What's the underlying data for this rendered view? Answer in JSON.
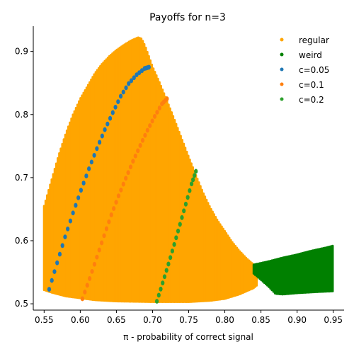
{
  "chart_data": {
    "type": "scatter",
    "title": "Payoffs for n=3",
    "xlabel": "π - probability of correct signal",
    "ylabel": "",
    "xlim": [
      0.535,
      0.965
    ],
    "ylim": [
      0.49,
      0.94
    ],
    "xticks": [
      "0.55",
      "0.60",
      "0.65",
      "0.70",
      "0.75",
      "0.80",
      "0.85",
      "0.90",
      "0.95"
    ],
    "yticks": [
      "0.5",
      "0.6",
      "0.7",
      "0.8",
      "0.9"
    ],
    "grid": false,
    "legend_position": "top-right",
    "series": [
      {
        "name": "regular",
        "color": "#ffa500",
        "region": {
          "upper": [
            [
              0.55,
              0.655
            ],
            [
              0.56,
              0.695
            ],
            [
              0.57,
              0.735
            ],
            [
              0.58,
              0.77
            ],
            [
              0.59,
              0.8
            ],
            [
              0.6,
              0.825
            ],
            [
              0.61,
              0.845
            ],
            [
              0.62,
              0.865
            ],
            [
              0.63,
              0.88
            ],
            [
              0.64,
              0.892
            ],
            [
              0.65,
              0.902
            ],
            [
              0.66,
              0.91
            ],
            [
              0.67,
              0.917
            ],
            [
              0.68,
              0.922
            ],
            [
              0.685,
              0.92
            ],
            [
              0.69,
              0.908
            ],
            [
              0.7,
              0.876
            ],
            [
              0.71,
              0.85
            ],
            [
              0.72,
              0.822
            ],
            [
              0.73,
              0.793
            ],
            [
              0.74,
              0.763
            ],
            [
              0.75,
              0.733
            ],
            [
              0.76,
              0.704
            ],
            [
              0.77,
              0.676
            ],
            [
              0.78,
              0.652
            ],
            [
              0.79,
              0.632
            ],
            [
              0.8,
              0.615
            ],
            [
              0.81,
              0.598
            ],
            [
              0.82,
              0.584
            ],
            [
              0.83,
              0.572
            ],
            [
              0.84,
              0.562
            ],
            [
              0.845,
              0.558
            ]
          ],
          "lower": [
            [
              0.55,
              0.522
            ],
            [
              0.56,
              0.518
            ],
            [
              0.57,
              0.515
            ],
            [
              0.58,
              0.512
            ],
            [
              0.6,
              0.509
            ],
            [
              0.62,
              0.506
            ],
            [
              0.65,
              0.504
            ],
            [
              0.7,
              0.503
            ],
            [
              0.75,
              0.503
            ],
            [
              0.78,
              0.505
            ],
            [
              0.8,
              0.508
            ],
            [
              0.82,
              0.515
            ],
            [
              0.84,
              0.525
            ],
            [
              0.845,
              0.53
            ]
          ]
        }
      },
      {
        "name": "weird",
        "color": "#008000",
        "region": {
          "upper": [
            [
              0.84,
              0.562
            ],
            [
              0.86,
              0.567
            ],
            [
              0.88,
              0.573
            ],
            [
              0.9,
              0.578
            ],
            [
              0.92,
              0.584
            ],
            [
              0.94,
              0.589
            ],
            [
              0.95,
              0.592
            ]
          ],
          "lower": [
            [
              0.84,
              0.548
            ],
            [
              0.86,
              0.528
            ],
            [
              0.87,
              0.516
            ],
            [
              0.88,
              0.515
            ],
            [
              0.9,
              0.517
            ],
            [
              0.93,
              0.519
            ],
            [
              0.95,
              0.52
            ]
          ]
        }
      },
      {
        "name": "c=0.05",
        "color": "#1f77b4",
        "x": [
          0.557,
          0.568,
          0.579,
          0.59,
          0.601,
          0.612,
          0.623,
          0.634,
          0.645,
          0.656,
          0.667,
          0.678,
          0.689,
          0.695
        ],
        "y": [
          0.523,
          0.565,
          0.606,
          0.644,
          0.68,
          0.714,
          0.746,
          0.776,
          0.803,
          0.829,
          0.849,
          0.863,
          0.873,
          0.875
        ]
      },
      {
        "name": "c=0.1",
        "color": "#ff7f0e",
        "x": [
          0.603,
          0.613,
          0.623,
          0.633,
          0.643,
          0.653,
          0.663,
          0.673,
          0.683,
          0.693,
          0.703,
          0.713,
          0.72
        ],
        "y": [
          0.508,
          0.54,
          0.574,
          0.608,
          0.641,
          0.671,
          0.699,
          0.726,
          0.751,
          0.775,
          0.797,
          0.817,
          0.825
        ]
      },
      {
        "name": "c=0.2",
        "color": "#2ca02c",
        "x": [
          0.706,
          0.714,
          0.722,
          0.73,
          0.738,
          0.746,
          0.754,
          0.76
        ],
        "y": [
          0.504,
          0.533,
          0.563,
          0.594,
          0.626,
          0.658,
          0.69,
          0.71
        ]
      }
    ]
  }
}
